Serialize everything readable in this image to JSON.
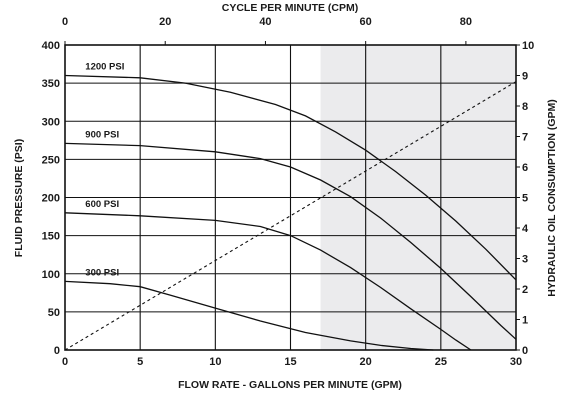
{
  "chart_data": {
    "type": "line",
    "top_axis": {
      "label": "CYCLE PER MINUTE (CPM)",
      "range": [
        0,
        90
      ],
      "ticks": [
        "0",
        "20",
        "40",
        "60",
        "80"
      ],
      "tick_values": [
        0,
        20,
        40,
        60,
        80
      ]
    },
    "x_axis": {
      "label": "FLOW RATE - GALLONS PER MINUTE (GPM)",
      "range": [
        0,
        30
      ],
      "ticks": [
        "0",
        "5",
        "10",
        "15",
        "20",
        "25",
        "30"
      ],
      "tick_values": [
        0,
        5,
        10,
        15,
        20,
        25,
        30
      ]
    },
    "y_axis": {
      "label": "FLUID PRESSURE  (PSI)",
      "range": [
        0,
        400
      ],
      "ticks": [
        "0",
        "50",
        "100",
        "150",
        "200",
        "250",
        "300",
        "350",
        "400"
      ],
      "tick_values": [
        0,
        50,
        100,
        150,
        200,
        250,
        300,
        350,
        400
      ]
    },
    "y2_axis": {
      "label": "HYDRAULIC OIL CONSUMPTION (GPM)",
      "range": [
        0,
        10
      ],
      "ticks": [
        "0",
        "1",
        "2",
        "3",
        "4",
        "5",
        "6",
        "7",
        "8",
        "9",
        "10"
      ],
      "tick_values": [
        0,
        1,
        2,
        3,
        4,
        5,
        6,
        7,
        8,
        9,
        10
      ]
    },
    "shaded_region": {
      "x_from": 17,
      "x_to": 30,
      "color": "#ebebed"
    },
    "grid": true,
    "series": [
      {
        "name": "1200 PSI",
        "axis": "left",
        "style": "solid",
        "x": [
          0,
          5,
          8,
          11,
          14,
          16,
          18,
          20,
          22,
          24,
          26,
          28,
          30
        ],
        "y": [
          360,
          357,
          350,
          338,
          322,
          307,
          286,
          262,
          234,
          203,
          169,
          132,
          92
        ]
      },
      {
        "name": "900 PSI",
        "axis": "left",
        "style": "solid",
        "x": [
          0,
          5,
          10,
          13,
          15,
          17,
          19,
          21,
          23,
          25,
          27,
          29,
          30
        ],
        "y": [
          271,
          268,
          260,
          251,
          240,
          223,
          201,
          173,
          141,
          107,
          70,
          32,
          14
        ]
      },
      {
        "name": "600 PSI",
        "axis": "left",
        "style": "solid",
        "x": [
          0,
          5,
          10,
          13,
          15,
          17,
          19,
          21,
          23,
          25,
          26,
          27
        ],
        "y": [
          180,
          176,
          170,
          162,
          150,
          131,
          108,
          82,
          54,
          27,
          13,
          0
        ]
      },
      {
        "name": "300 PSI",
        "axis": "left",
        "style": "solid",
        "x": [
          0,
          3,
          5,
          7,
          10,
          13,
          16,
          19,
          21,
          23,
          24.5
        ],
        "y": [
          90,
          87,
          83,
          72,
          55,
          38,
          23,
          12,
          6,
          2,
          0
        ]
      },
      {
        "name": "",
        "axis": "right",
        "style": "dashed",
        "x": [
          0,
          30
        ],
        "y": [
          0,
          8.8
        ]
      }
    ]
  }
}
